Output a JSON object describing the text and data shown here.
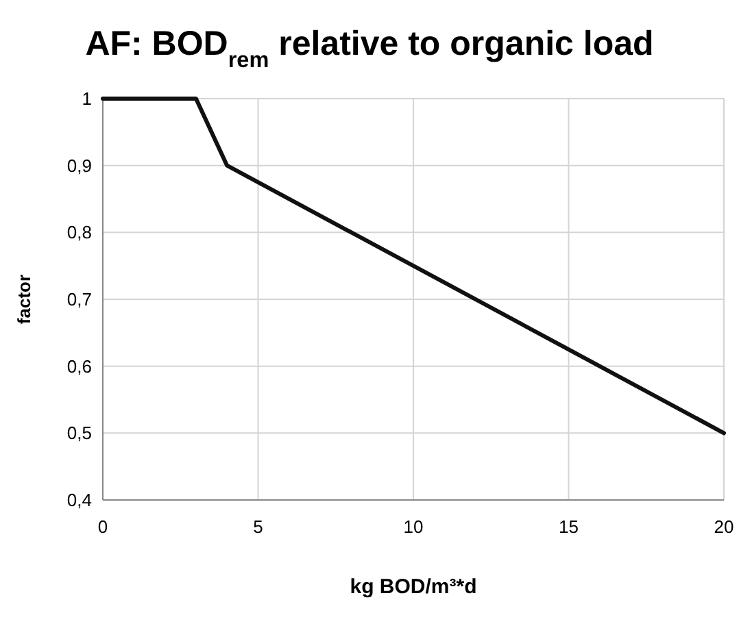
{
  "chart_data": {
    "type": "line",
    "title": "AF: BOD$_{rem}$ relative to organic load",
    "xlabel": "kg BOD/m³*d",
    "ylabel": "factor",
    "x": [
      0,
      3,
      4,
      20
    ],
    "series": [
      {
        "color": "#111111",
        "values": [
          1,
          1,
          0.9,
          0.5
        ]
      }
    ],
    "xlim": [
      0,
      20
    ],
    "xticks": [
      0,
      5,
      10,
      15,
      20
    ],
    "ylim": [
      0.4,
      1
    ],
    "yticks": [
      {
        "value": 0.4,
        "label": "0,4"
      },
      {
        "value": 0.5,
        "label": "0,5"
      },
      {
        "value": 0.6,
        "label": "0,6"
      },
      {
        "value": 0.7,
        "label": "0,7"
      },
      {
        "value": 0.8,
        "label": "0,8"
      },
      {
        "value": 0.9,
        "label": "0,9"
      },
      1
    ],
    "grid": true,
    "marker": "none",
    "line_style": "solid"
  }
}
